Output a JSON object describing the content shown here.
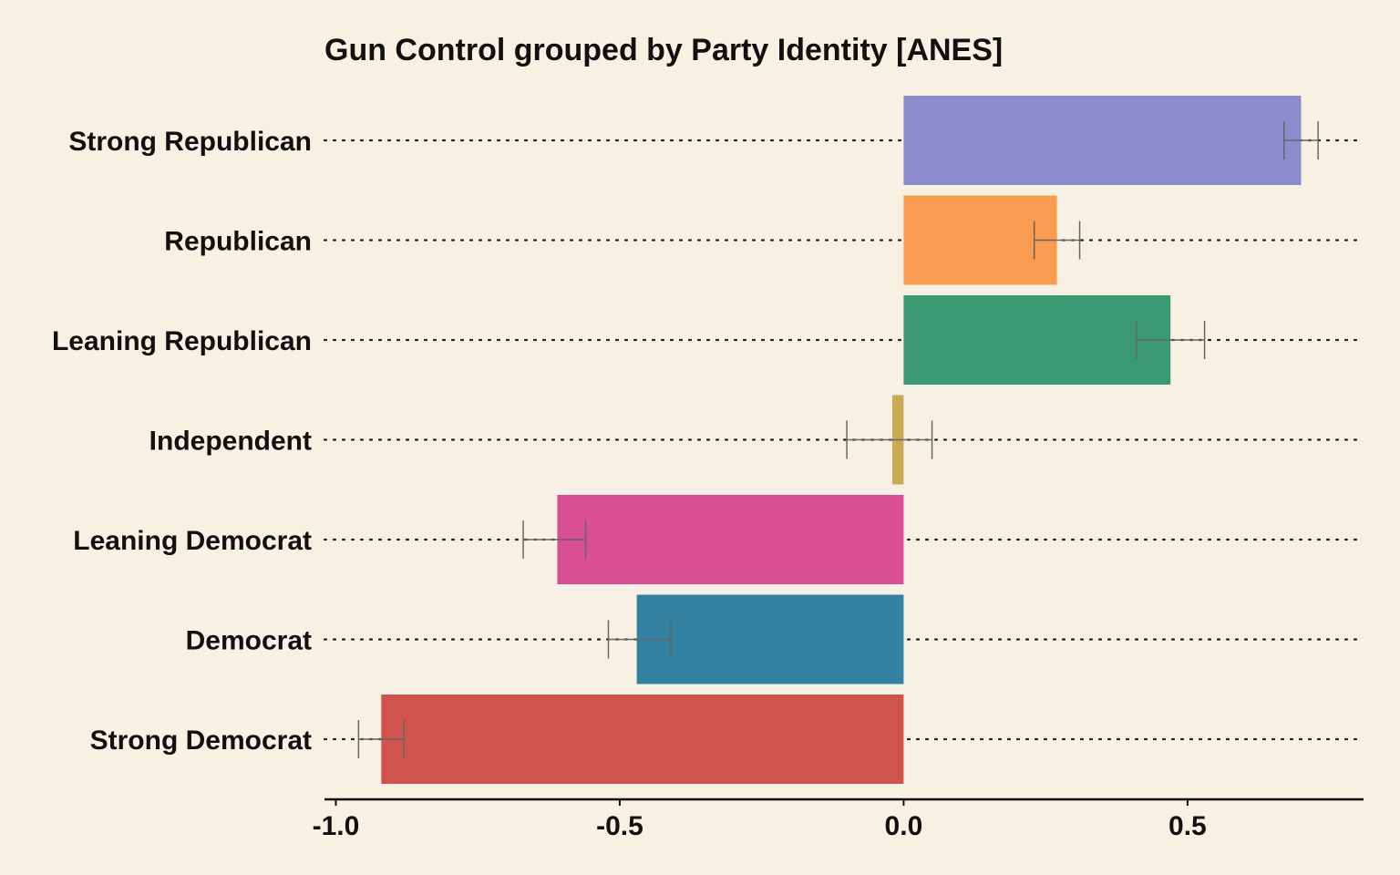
{
  "chart_data": {
    "type": "bar",
    "orientation": "horizontal",
    "title": "Gun Control grouped by Party Identity [ANES]",
    "xlabel": "",
    "ylabel": "",
    "xlim": [
      -1.02,
      0.81
    ],
    "x_ticks": [
      -1.0,
      -0.5,
      0.0,
      0.5
    ],
    "x_tick_labels": [
      "-1.0",
      "-0.5",
      "0.0",
      "0.5"
    ],
    "grid": "dotted horizontal lines at each category",
    "legend": "none",
    "categories": [
      "Strong Republican",
      "Republican",
      "Leaning Republican",
      "Independent",
      "Leaning Democrat",
      "Democrat",
      "Strong Democrat"
    ],
    "values": [
      0.7,
      0.27,
      0.47,
      -0.02,
      -0.61,
      -0.47,
      -0.92
    ],
    "error_low": [
      0.67,
      0.23,
      0.41,
      -0.1,
      -0.67,
      -0.52,
      -0.96
    ],
    "error_high": [
      0.73,
      0.31,
      0.53,
      0.05,
      -0.56,
      -0.41,
      -0.88
    ],
    "colors": [
      "#8a8ccb",
      "#f99b50",
      "#3a9872",
      "#c9ab53",
      "#da4e93",
      "#3382a2",
      "#d0544c"
    ],
    "background_color": "#f7f1e3",
    "errorbar_color": "#666666"
  }
}
